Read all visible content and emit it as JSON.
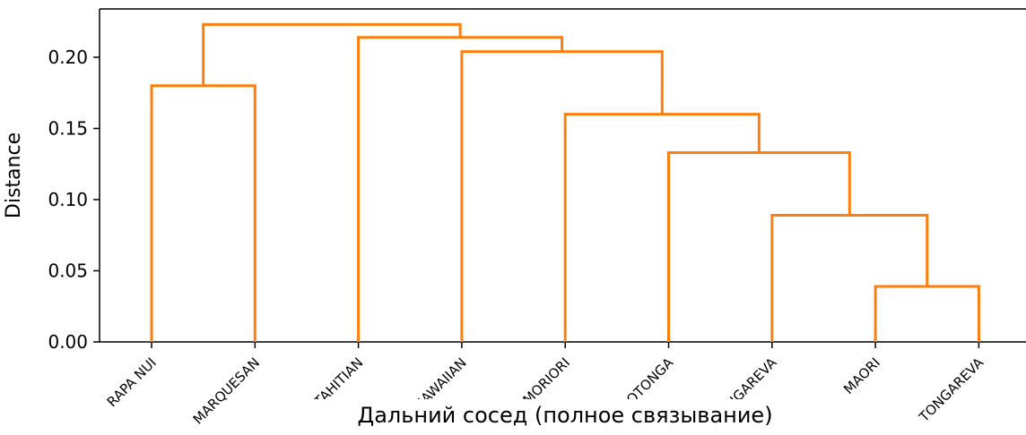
{
  "chart_data": {
    "type": "dendrogram",
    "title": "",
    "xlabel": "Дальний сосед (полное связывание)",
    "ylabel": "Distance",
    "ylim": [
      0,
      0.225
    ],
    "yticks": [
      "0.00",
      "0.05",
      "0.10",
      "0.15",
      "0.20"
    ],
    "ytick_values": [
      0,
      0.05,
      0.1,
      0.15,
      0.2
    ],
    "leaves": [
      "RAPA NUI",
      "MARQUESAN",
      "TAHITIAN",
      "HAWAIIAN",
      "MORIORI",
      "RAROTONGA",
      "MANGAREVA",
      "MAORI",
      "TONGAREVA"
    ],
    "merges": [
      {
        "left": "MAORI",
        "right": "TONGAREVA",
        "distance": 0.039
      },
      {
        "left": "MANGAREVA",
        "right": "MAORI+TONGAREVA",
        "distance": 0.089
      },
      {
        "left": "RAROTONGA",
        "right": "MANGAREVA+MAORI+TONGAREVA",
        "distance": 0.133
      },
      {
        "left": "MORIORI",
        "right": "RAROTONGA+MANGAREVA+MAORI+TONGAREVA",
        "distance": 0.16
      },
      {
        "left": "RAPA NUI",
        "right": "MARQUESAN",
        "distance": 0.18
      },
      {
        "left": "HAWAIIAN",
        "right": "MORIORI+RAROTONGA+MANGAREVA+MAORI+TONGAREVA",
        "distance": 0.204
      },
      {
        "left": "TAHITIAN",
        "right": "HAWAIIAN+MORIORI+RAROTONGA+MANGAREVA+MAORI+TONGAREVA",
        "distance": 0.214
      },
      {
        "left": "RAPA NUI+MARQUESAN",
        "right": "TAHITIAN+HAWAIIAN+MORIORI+RAROTONGA+MANGAREVA+MAORI+TONGAREVA",
        "distance": 0.223
      }
    ],
    "link_color": "#ff7f0e",
    "grid": false
  }
}
